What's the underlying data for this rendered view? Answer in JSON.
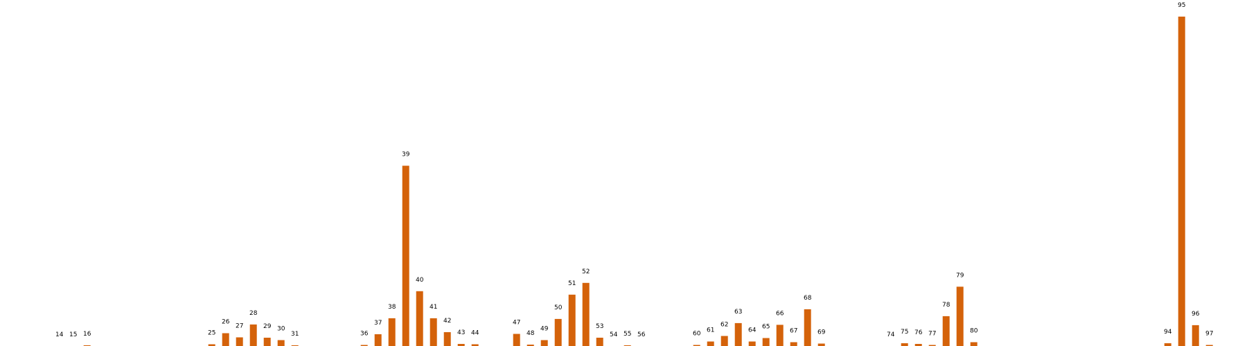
{
  "chart_data": {
    "type": "bar",
    "title": "",
    "xlabel": "",
    "ylabel": "",
    "bar_color": "#d4620a",
    "grid": false,
    "legend": "none",
    "ylim": [
      0,
      95
    ],
    "categories": [
      "14",
      "15",
      "16",
      "25",
      "26",
      "27",
      "28",
      "29",
      "30",
      "31",
      "36",
      "37",
      "38",
      "39",
      "40",
      "41",
      "42",
      "43",
      "44",
      "47",
      "48",
      "49",
      "50",
      "51",
      "52",
      "53",
      "54",
      "55",
      "56",
      "60",
      "61",
      "62",
      "63",
      "64",
      "65",
      "66",
      "67",
      "68",
      "69",
      "74",
      "75",
      "76",
      "77",
      "78",
      "79",
      "80",
      "94",
      "95",
      "96",
      "97"
    ],
    "values": [
      0,
      0,
      0.2,
      0.5,
      3.7,
      2.5,
      6.2,
      2.4,
      1.7,
      0.2,
      0.3,
      3.4,
      8,
      52,
      15.8,
      8,
      4,
      0.6,
      0.5,
      3.5,
      0.4,
      1.7,
      7.8,
      14.8,
      18.2,
      2.4,
      0,
      0.2,
      0,
      0.3,
      1.3,
      2.9,
      6.6,
      1.3,
      2.3,
      6.1,
      1.1,
      10.6,
      0.7,
      0,
      0.8,
      0.6,
      0.3,
      8.6,
      17.1,
      1.1,
      0.8,
      95,
      6,
      0.3
    ]
  }
}
